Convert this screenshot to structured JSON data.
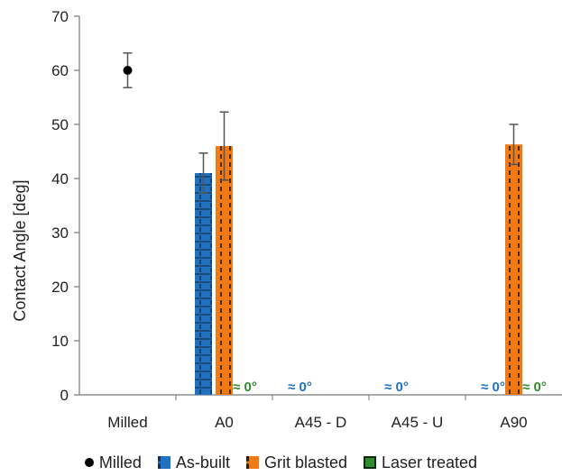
{
  "chart_data": {
    "type": "bar",
    "ylabel": "Contact Angle [deg]",
    "xlabel": "",
    "ylim": [
      0,
      70
    ],
    "yticks": [
      0,
      10,
      20,
      30,
      40,
      50,
      60,
      70
    ],
    "categories": [
      "Milled",
      "A0",
      "A45 - D",
      "A45 - U",
      "A90"
    ],
    "series": [
      {
        "name": "Milled",
        "kind": "point",
        "color": "#000000",
        "values": [
          60,
          null,
          null,
          null,
          null
        ],
        "errors": [
          3.2,
          null,
          null,
          null,
          null
        ]
      },
      {
        "name": "As-built",
        "kind": "bar",
        "color": "#2171c1",
        "values": [
          null,
          41,
          0,
          0,
          0
        ],
        "errors": [
          null,
          3.7,
          null,
          null,
          null
        ]
      },
      {
        "name": "Grit blasted",
        "kind": "bar",
        "color": "#f07a16",
        "values": [
          null,
          46,
          null,
          null,
          46.3
        ],
        "errors": [
          null,
          6.3,
          null,
          null,
          3.7
        ]
      },
      {
        "name": "Laser treated",
        "kind": "bar",
        "color": "#2e8b2e",
        "values": [
          null,
          0,
          null,
          null,
          0
        ],
        "errors": [
          null,
          null,
          null,
          null,
          null
        ]
      }
    ],
    "annotations": [
      {
        "text": "≈ 0°",
        "category": "A0",
        "series": "Laser treated",
        "color": "#2e8b2e"
      },
      {
        "text": "≈ 0°",
        "category": "A45 - D",
        "series": "As-built",
        "color": "#2171c1"
      },
      {
        "text": "≈ 0°",
        "category": "A45 - U",
        "series": "As-built",
        "color": "#2171c1"
      },
      {
        "text": "≈ 0°",
        "category": "A90",
        "series": "As-built",
        "color": "#2171c1"
      },
      {
        "text": "≈ 0°",
        "category": "A90",
        "series": "Laser treated",
        "color": "#2e8b2e"
      }
    ],
    "legend": {
      "position": "bottom",
      "items": [
        "Milled",
        "As-built",
        "Grit blasted",
        "Laser treated"
      ]
    },
    "grid": false
  }
}
